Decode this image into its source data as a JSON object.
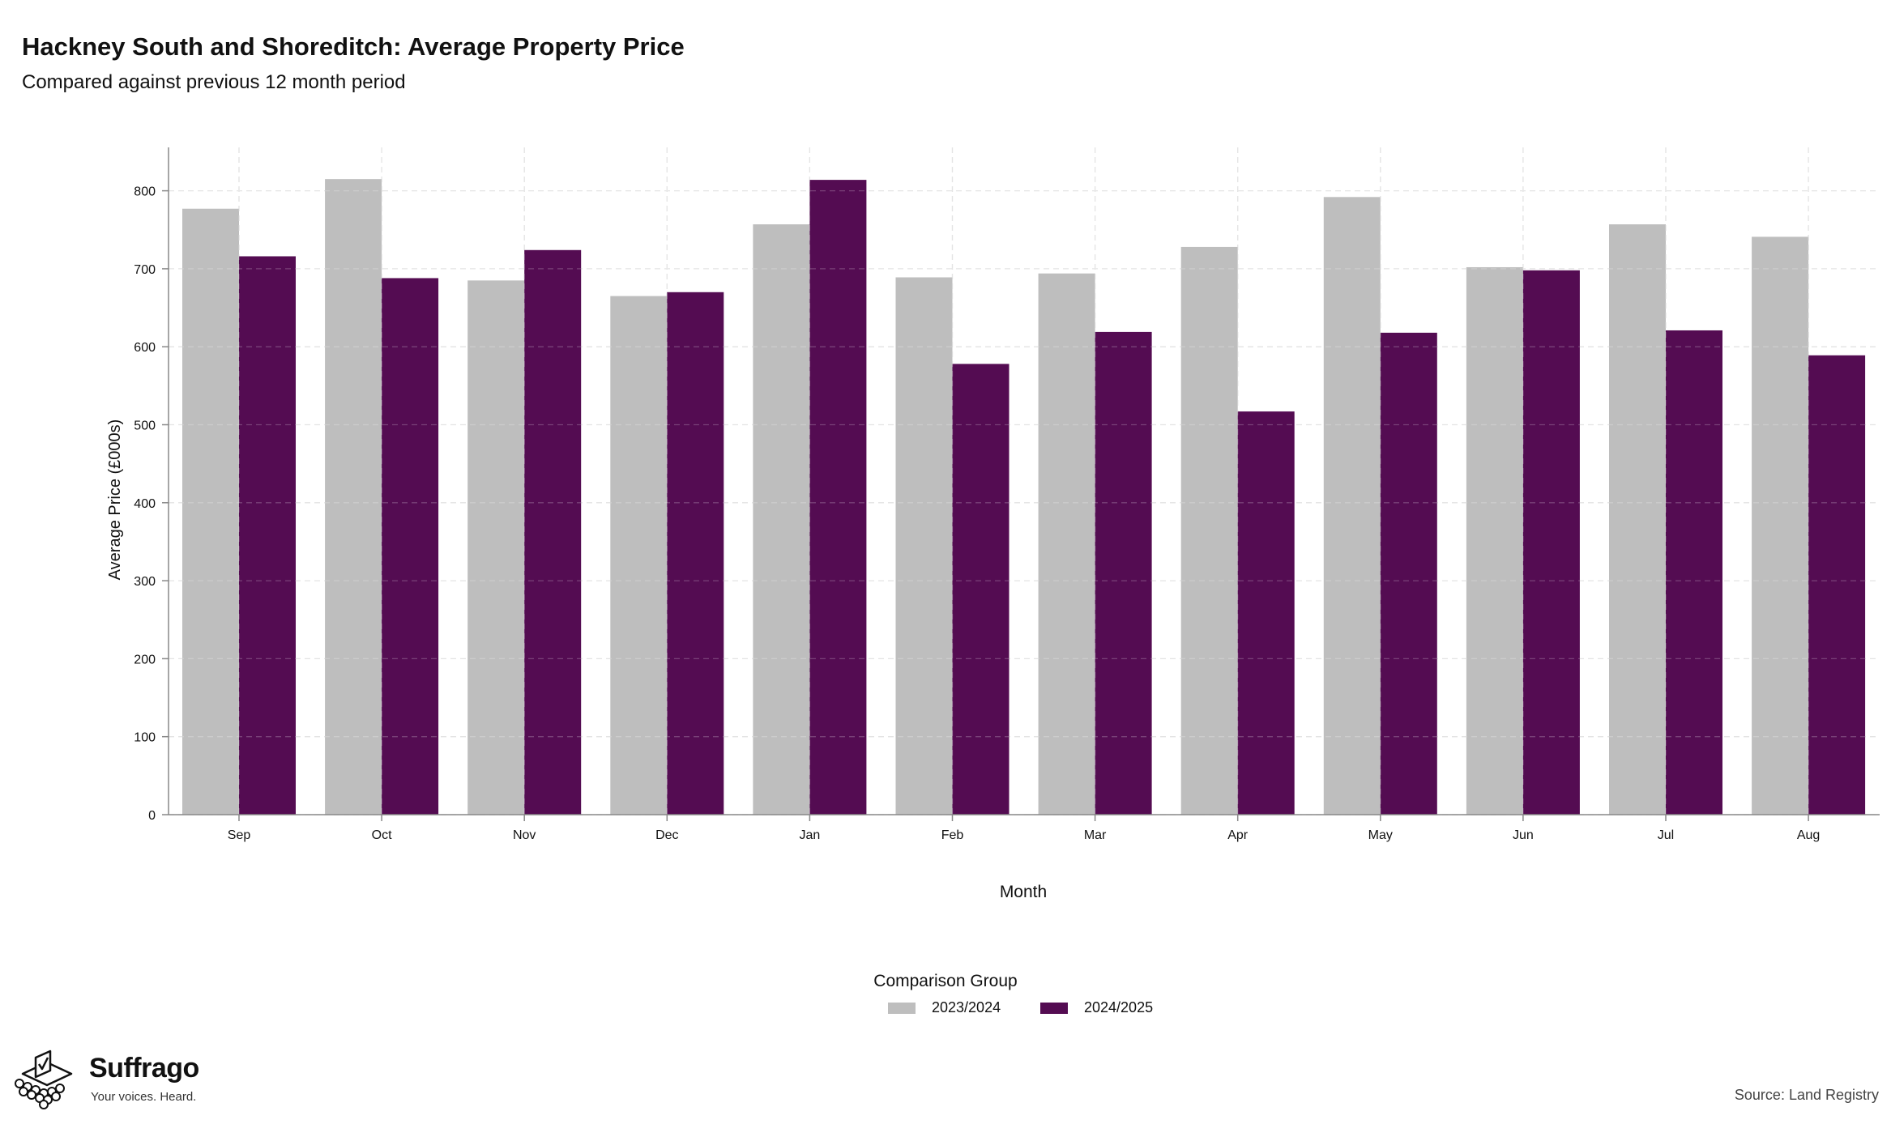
{
  "title": "Hackney South and Shoreditch: Average Property Price",
  "subtitle": "Compared against previous 12 month period",
  "source": "Source: Land Registry",
  "logo": {
    "name": "Suffrago",
    "tagline": "Your voices. Heard."
  },
  "colors": {
    "series_2023": "#bebebe",
    "series_2024": "#540c52",
    "grid": "#dddddd",
    "axis": "#888888"
  },
  "legend": {
    "title": "Comparison Group",
    "position": "bottom-center"
  },
  "chart_data": {
    "type": "bar",
    "title": "Hackney South and Shoreditch: Average Property Price",
    "subtitle": "Compared against previous 12 month period",
    "xlabel": "Month",
    "ylabel": "Average Price (£000s)",
    "ylim": [
      0,
      800
    ],
    "yticks": [
      0,
      100,
      200,
      300,
      400,
      500,
      600,
      700,
      800
    ],
    "grid": true,
    "categories": [
      "Sep",
      "Oct",
      "Nov",
      "Dec",
      "Jan",
      "Feb",
      "Mar",
      "Apr",
      "May",
      "Jun",
      "Jul",
      "Aug"
    ],
    "series": [
      {
        "name": "2023/2024",
        "values": [
          777,
          815,
          685,
          665,
          757,
          689,
          694,
          728,
          792,
          702,
          757,
          741
        ]
      },
      {
        "name": "2024/2025",
        "values": [
          716,
          688,
          724,
          670,
          814,
          578,
          619,
          517,
          618,
          698,
          621,
          589
        ]
      }
    ]
  }
}
